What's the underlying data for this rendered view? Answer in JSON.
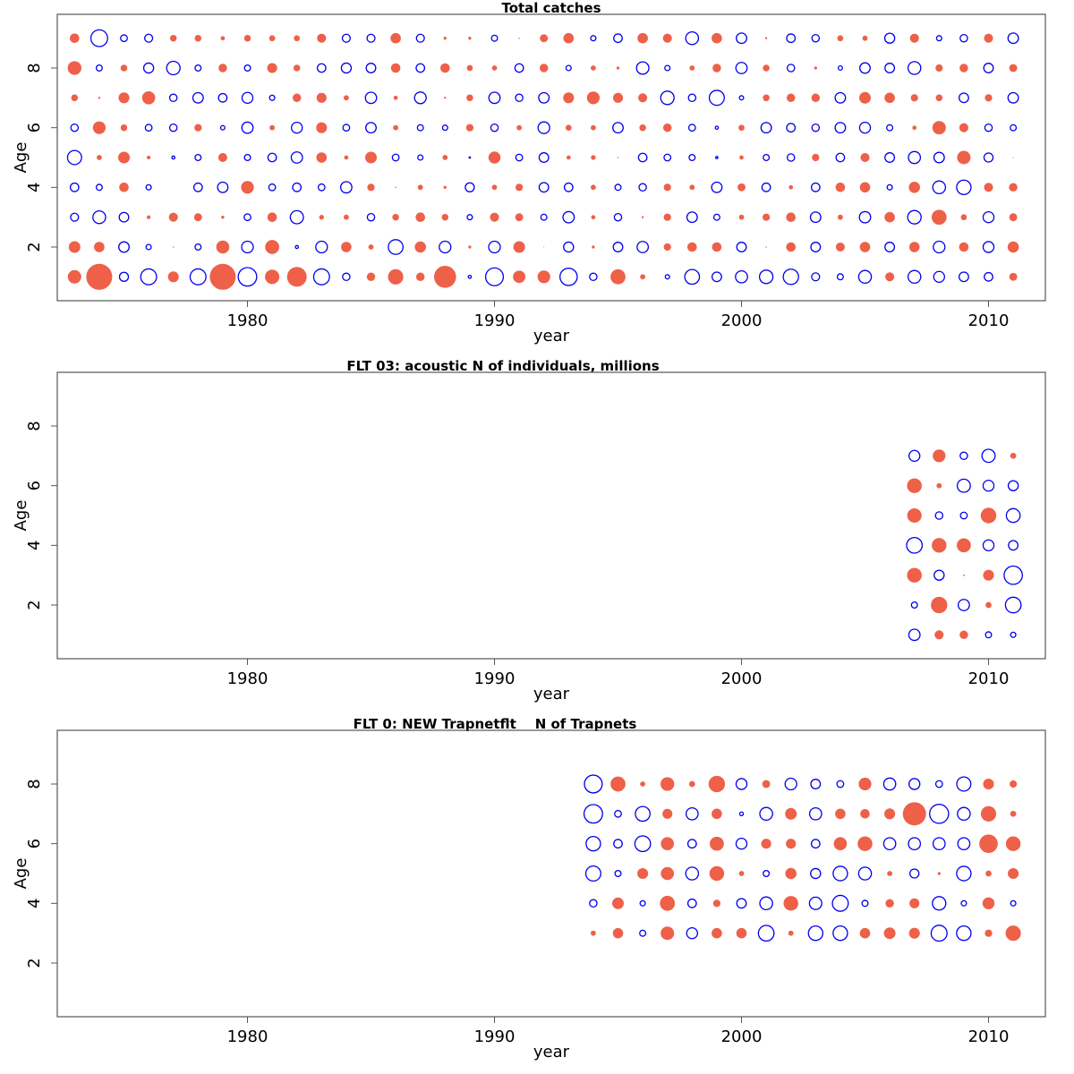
{
  "colors": {
    "positive": "#EE6048",
    "negative": "#0000EE",
    "frame": "#555555"
  },
  "chart_data": [
    {
      "type": "scatter",
      "subtype": "bubble",
      "title": "Total catches",
      "xlabel": "year",
      "ylabel": "Age",
      "xlim": [
        1972.3,
        2012.3
      ],
      "ylim": [
        0.2,
        9.8
      ],
      "xticks": [
        1980,
        1990,
        2000,
        2010
      ],
      "yticks": [
        2,
        4,
        6,
        8
      ],
      "years": [
        1973,
        1974,
        1975,
        1976,
        1977,
        1978,
        1979,
        1980,
        1981,
        1982,
        1983,
        1984,
        1985,
        1986,
        1987,
        1988,
        1989,
        1990,
        1991,
        1992,
        1993,
        1994,
        1995,
        1996,
        1997,
        1998,
        1999,
        2000,
        2001,
        2002,
        2003,
        2004,
        2005,
        2006,
        2007,
        2008,
        2009,
        2010,
        2011
      ],
      "ages": [
        1,
        2,
        3,
        4,
        5,
        6,
        7,
        8,
        9
      ],
      "values": [
        [
          2.0,
          7.5,
          -0.9,
          -2.8,
          1.3,
          -2.8,
          7.5,
          -3.8,
          2.3,
          4.3,
          -2.8,
          -0.6,
          0.8,
          2.6,
          0.8,
          5.4,
          -0.1,
          -3.5,
          1.7,
          1.8,
          -3.3,
          -0.6,
          2.5,
          0.3,
          -0.2,
          -2.4,
          -1.0,
          -1.6,
          -2.0,
          -2.6,
          -0.7,
          -0.4,
          -1.8,
          0.9,
          -1.8,
          -1.3,
          -1.0,
          -0.8,
          0.7
        ],
        [
          1.5,
          1.2,
          -1.2,
          -0.3,
          0.02,
          -0.4,
          1.9,
          -1.5,
          2.2,
          -0.1,
          -1.5,
          1.2,
          0.3,
          -2.4,
          1.4,
          -1.5,
          0.1,
          -1.5,
          1.5,
          0.01,
          -1.1,
          0.1,
          -1.0,
          -1.4,
          0.6,
          1.0,
          1.0,
          -1.0,
          0.02,
          1.0,
          -1.0,
          0.9,
          1.2,
          -1.0,
          1.2,
          -1.5,
          1.0,
          -1.3,
          1.4
        ],
        [
          -0.7,
          -1.8,
          -1.0,
          0.15,
          0.9,
          0.7,
          0.1,
          -0.5,
          1.0,
          -1.9,
          0.25,
          0.3,
          -0.6,
          0.5,
          1.0,
          0.5,
          -0.3,
          0.9,
          0.7,
          -0.4,
          -1.4,
          0.2,
          -0.6,
          0.05,
          0.6,
          -1.2,
          -0.4,
          0.3,
          0.6,
          1.0,
          -1.2,
          0.3,
          -1.4,
          1.2,
          -2.0,
          2.5,
          0.4,
          -1.3,
          0.7
        ],
        [
          -0.8,
          -0.4,
          1.0,
          -0.3,
          0.0,
          -0.8,
          -1.2,
          1.8,
          -0.5,
          -0.8,
          -0.5,
          -1.4,
          0.6,
          0.02,
          0.3,
          0.1,
          -0.9,
          0.3,
          0.6,
          -1.0,
          -0.8,
          0.3,
          -0.4,
          -0.6,
          0.6,
          0.3,
          -1.2,
          0.7,
          -0.8,
          0.2,
          -0.8,
          1.0,
          1.2,
          -0.3,
          1.4,
          -1.8,
          -2.3,
          0.9,
          0.8
        ],
        [
          -2.2,
          0.3,
          1.5,
          0.15,
          -0.1,
          -0.4,
          0.9,
          -0.4,
          -0.8,
          -1.4,
          1.2,
          0.2,
          1.5,
          -0.5,
          -0.3,
          0.3,
          -0.02,
          1.6,
          -0.5,
          -1.0,
          0.2,
          0.25,
          0.02,
          -0.8,
          -0.5,
          -0.4,
          -0.05,
          0.2,
          -0.4,
          -0.6,
          0.6,
          -0.8,
          0.9,
          -1.0,
          -1.6,
          -1.2,
          2.0,
          -0.9,
          0.01
        ],
        [
          -0.6,
          1.8,
          0.5,
          -0.5,
          -0.6,
          0.6,
          -0.2,
          -1.4,
          0.3,
          -1.3,
          1.3,
          -0.5,
          -1.2,
          0.3,
          -0.4,
          -0.3,
          0.6,
          -0.6,
          0.3,
          -1.5,
          0.4,
          0.3,
          -1.2,
          0.5,
          0.8,
          -0.5,
          -0.1,
          0.4,
          -1.2,
          -0.8,
          -0.6,
          -1.2,
          -1.3,
          -0.4,
          0.2,
          2.0,
          0.9,
          -0.6,
          -0.4
        ],
        [
          0.5,
          0.05,
          1.3,
          1.9,
          -0.6,
          -1.2,
          -0.8,
          -1.3,
          -0.3,
          0.8,
          1.1,
          0.3,
          -1.4,
          0.2,
          -1.5,
          0.05,
          0.5,
          -1.4,
          -0.6,
          -1.2,
          1.3,
          1.8,
          1.1,
          0.9,
          -2.0,
          -0.6,
          -2.5,
          -0.2,
          0.5,
          0.8,
          0.8,
          -1.2,
          1.5,
          1.2,
          0.6,
          0.5,
          -1.0,
          0.6,
          -1.2
        ],
        [
          2.1,
          -0.4,
          0.5,
          -1.1,
          -2.0,
          -0.4,
          0.8,
          -0.4,
          1.1,
          0.5,
          -0.8,
          -1.1,
          -1.0,
          1.0,
          -0.8,
          1.0,
          0.4,
          0.3,
          -0.8,
          0.8,
          -0.3,
          0.3,
          0.1,
          -1.7,
          -0.3,
          0.3,
          0.8,
          -1.4,
          0.5,
          -0.6,
          0.1,
          -0.2,
          -1.2,
          -1.0,
          -1.8,
          0.6,
          0.8,
          -1.0,
          0.7
        ],
        [
          1.0,
          -3.1,
          -0.5,
          -0.7,
          0.5,
          0.5,
          0.2,
          0.5,
          0.4,
          0.4,
          0.9,
          -0.7,
          -0.7,
          1.2,
          -0.7,
          0.1,
          0.1,
          -0.4,
          0.02,
          0.7,
          1.2,
          -0.3,
          -0.8,
          1.2,
          0.9,
          -1.8,
          1.2,
          -1.2,
          0.05,
          -0.8,
          -0.6,
          0.4,
          0.3,
          -1.1,
          0.9,
          -0.3,
          -0.6,
          0.9,
          -1.2
        ]
      ]
    },
    {
      "type": "scatter",
      "subtype": "bubble",
      "title": "FLT 03:   acoustic   N of individuals, millions",
      "xlabel": "year",
      "ylabel": "Age",
      "xlim": [
        1972.3,
        2012.3
      ],
      "ylim": [
        0.2,
        9.8
      ],
      "xticks": [
        1980,
        1990,
        2000,
        2010
      ],
      "yticks": [
        2,
        4,
        6,
        8
      ],
      "years": [
        2007,
        2008,
        2009,
        2010,
        2011
      ],
      "ages": [
        1,
        2,
        3,
        4,
        5,
        6,
        7
      ],
      "values": [
        [
          -1.4,
          0.9,
          0.8,
          -0.4,
          -0.3
        ],
        [
          -0.4,
          3.0,
          -1.4,
          0.4,
          -2.7
        ],
        [
          2.4,
          -1.1,
          0.03,
          1.3,
          -3.7
        ],
        [
          -2.7,
          2.4,
          2.2,
          -1.3,
          -1.0
        ],
        [
          2.3,
          -0.6,
          -0.5,
          2.7,
          -2.1
        ],
        [
          2.4,
          0.3,
          -1.9,
          -1.3,
          -1.1
        ],
        [
          -1.3,
          1.8,
          -0.6,
          -1.9,
          0.4
        ]
      ]
    },
    {
      "type": "scatter",
      "subtype": "bubble",
      "title": "FLT 0: NEW Trapnetflt    N of Trapnets",
      "xlabel": "year",
      "ylabel": "Age",
      "xlim": [
        1972.3,
        2012.3
      ],
      "ylim": [
        0.2,
        9.8
      ],
      "xticks": [
        1980,
        1990,
        2000,
        2010
      ],
      "yticks": [
        2,
        4,
        6,
        8
      ],
      "years": [
        1994,
        1995,
        1996,
        1997,
        1998,
        1999,
        2000,
        2001,
        2002,
        2003,
        2004,
        2005,
        2006,
        2007,
        2008,
        2009,
        2010,
        2011
      ],
      "ages": [
        3,
        4,
        5,
        6,
        7,
        8
      ],
      "values": [
        [
          0.3,
          1.2,
          -0.4,
          2.0,
          -1.3,
          1.2,
          1.2,
          -2.7,
          0.3,
          -2.3,
          -2.3,
          1.2,
          1.5,
          1.3,
          -2.8,
          -2.3,
          0.6,
          2.6
        ],
        [
          -0.6,
          1.5,
          -0.3,
          2.5,
          -0.8,
          0.6,
          -1.0,
          -1.8,
          2.4,
          -1.7,
          -2.8,
          -0.4,
          0.8,
          1.1,
          -2.0,
          -0.3,
          1.6,
          -0.3
        ],
        [
          -2.5,
          -0.4,
          1.3,
          1.9,
          -1.8,
          2.4,
          0.3,
          -0.4,
          1.4,
          -1.1,
          -2.3,
          -1.8,
          0.3,
          -0.9,
          0.1,
          -2.3,
          0.4,
          1.3
        ],
        [
          -2.3,
          -0.8,
          -2.7,
          1.9,
          -0.8,
          2.2,
          -1.3,
          1.1,
          1.1,
          -0.8,
          1.9,
          2.4,
          -1.6,
          -1.6,
          -1.6,
          -1.6,
          3.8,
          2.4
        ],
        [
          -3.8,
          -0.5,
          -2.4,
          1.1,
          -1.6,
          1.2,
          -0.15,
          -1.8,
          1.5,
          -1.6,
          1.2,
          1.0,
          1.3,
          6.0,
          -4.0,
          -1.8,
          2.6,
          0.4
        ],
        [
          -3.5,
          2.5,
          0.3,
          2.1,
          0.4,
          3.0,
          -1.3,
          0.7,
          -1.5,
          -1.0,
          -0.5,
          1.8,
          -1.6,
          -1.3,
          -0.5,
          -2.2,
          1.3,
          0.6
        ]
      ]
    }
  ]
}
